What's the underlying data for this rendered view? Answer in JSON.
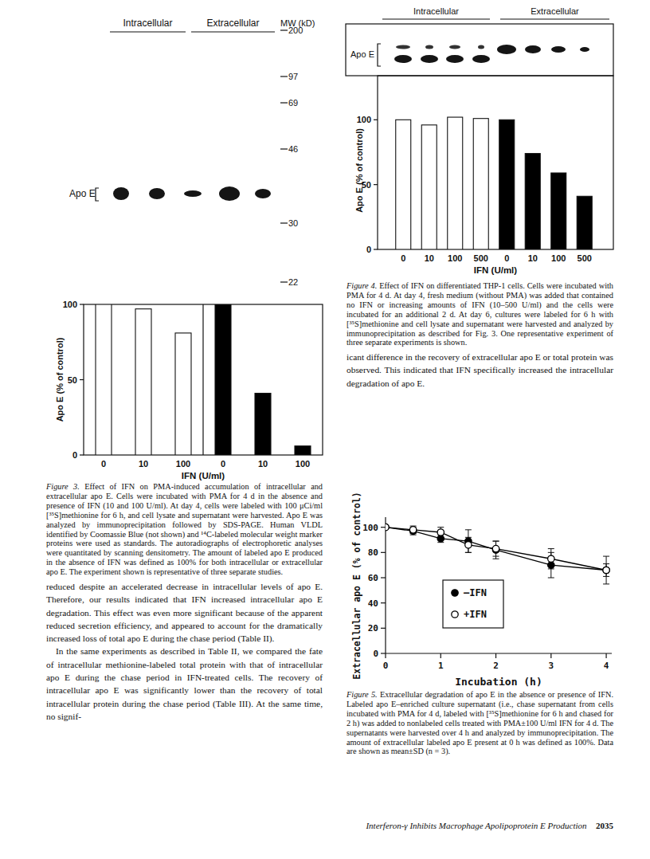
{
  "figure3": {
    "gel": {
      "headers": [
        "Intracellular",
        "Extracellular"
      ],
      "mw_title": "MW (kD)",
      "mw_markers": [
        200,
        97,
        69,
        46,
        30,
        22
      ],
      "band_label": "Apo E"
    },
    "caption_label": "Figure 3.",
    "caption": "Effect of IFN on PMA-induced accumulation of intracellular and extracellular apo E. Cells were incubated with PMA for 4 d in the absence and presence of IFN (10 and 100 U/ml). At day 4, cells were labeled with 100 μCi/ml [³⁵S]methionine for 6 h, and cell lysate and supernatant were harvested. Apo E was analyzed by immunoprecipitation followed by SDS-PAGE. Human VLDL identified by Coomassie Blue (not shown) and ¹⁴C-labeled molecular weight marker proteins were used as standards. The autoradiographs of electrophoretic analyses were quantitated by scanning densitometry. The amount of labeled apo E produced in the absence of IFN was defined as 100% for both intracellular or extracellular apo E. The experiment shown is representative of three separate studies."
  },
  "figure4": {
    "gel": {
      "headers": [
        "Intracellular",
        "Extracellular"
      ],
      "band_label": "Apo E"
    },
    "caption_label": "Figure 4.",
    "caption": "Effect of IFN on differentiated THP-1 cells. Cells were incubated with PMA for 4 d. At day 4, fresh medium (without PMA) was added that contained no IFN or increasing amounts of IFN (10–500 U/ml) and the cells were incubated for an additional 2 d. At day 6, cultures were labeled for 6 h with [³⁵S]methionine and cell lysate and supernatant were harvested and analyzed by immunoprecipitation as described for Fig. 3. One representative experiment of three separate experiments is shown."
  },
  "figure5": {
    "caption_label": "Figure 5.",
    "caption": "Extracellular degradation of apo E in the absence or presence of IFN. Labeled apo E–enriched culture supernatant (i.e., chase supernatant from cells incubated with PMA for 4 d, labeled with [³⁵S]methionine for 6 h and chased for 2 h) was added to nonlabeled cells treated with PMA±100 U/ml IFN for 4 d. The supernatants were harvested over 4 h and analyzed by immunoprecipitation. The amount of extracellular labeled apo E present at 0 h was defined as 100%. Data are shown as mean±SD (n = 3)."
  },
  "body": {
    "left": [
      "reduced despite an accelerated decrease in intracellular levels of apo E. Therefore, our results indicated that IFN increased intracellular apo E degradation. This effect was even more significant because of the apparent reduced secretion efficiency, and appeared to account for the dramatically increased loss of total apo E during the chase period (Table II).",
      "In the same experiments as described in Table II, we compared the fate of intracellular methionine-labeled total protein with that of intracellular apo E during the chase period in IFN-treated cells. The recovery of intracellular apo E was significantly lower than the recovery of total intracellular protein during the chase period (Table III). At the same time, no signif-"
    ],
    "right": [
      "icant difference in the recovery of extracellular apo E or total protein was observed. This indicated that IFN specifically increased the intracellular degradation of apo E."
    ]
  },
  "footer": {
    "running_title": "Interferon-γ Inhibits Macrophage Apolipoprotein E Production",
    "page": "2035"
  },
  "chart_data": [
    {
      "type": "bar",
      "y_label": "Apo E (% of control)",
      "x_label": "IFN (U/ml)",
      "categories": [
        "0",
        "10",
        "100",
        "0",
        "10",
        "100"
      ],
      "values": [
        100,
        97,
        81,
        100,
        41,
        6
      ],
      "colors": [
        "#ffffff",
        "#ffffff",
        "#ffffff",
        "#000000",
        "#000000",
        "#000000"
      ],
      "ylim": [
        0,
        100
      ],
      "yticks": [
        0,
        50,
        100
      ],
      "grid": false
    },
    {
      "type": "bar",
      "y_label": "Apo E (% of control)",
      "x_label": "IFN (U/ml)",
      "categories": [
        "0",
        "10",
        "100",
        "500",
        "0",
        "10",
        "100",
        "500"
      ],
      "values": [
        100,
        96,
        102,
        101,
        100,
        74,
        59,
        41
      ],
      "colors": [
        "#ffffff",
        "#ffffff",
        "#ffffff",
        "#ffffff",
        "#000000",
        "#000000",
        "#000000",
        "#000000"
      ],
      "ylim": [
        0,
        134
      ],
      "yticks": [
        0,
        50,
        100
      ],
      "grid": false
    },
    {
      "type": "line",
      "y_label": "Extracellular apo E (% of control)",
      "x_label": "Incubation (h)",
      "x": [
        0,
        0.5,
        1,
        1.5,
        2,
        3,
        4
      ],
      "series": [
        {
          "name": "–IFN",
          "color": "#000000",
          "marker": "filled-circle",
          "line_style": "solid",
          "values": [
            100,
            97,
            91,
            89,
            82,
            70,
            66
          ],
          "errors": [
            0,
            3,
            3,
            9,
            7,
            10,
            5
          ]
        },
        {
          "name": "+IFN",
          "color": "#000000",
          "marker": "open-circle",
          "line_style": "solid",
          "values": [
            100,
            98,
            96,
            86,
            83,
            75,
            66
          ],
          "errors": [
            0,
            3,
            4,
            6,
            6,
            8,
            11
          ]
        }
      ],
      "xlim": [
        0,
        4.1
      ],
      "xticks": [
        0,
        1,
        2,
        3,
        4
      ],
      "ylim": [
        0,
        108
      ],
      "yticks": [
        0,
        20,
        40,
        60,
        80,
        100
      ],
      "grid": false,
      "legend": "center"
    }
  ]
}
